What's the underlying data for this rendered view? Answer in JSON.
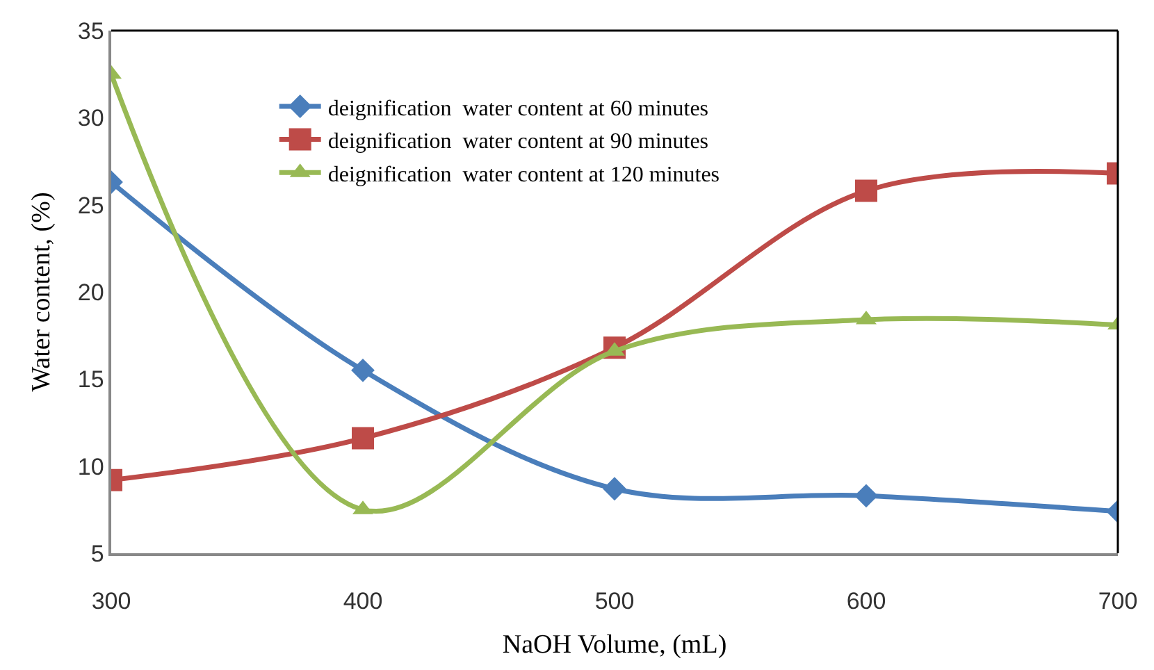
{
  "chart_data": {
    "type": "line",
    "xlabel": "NaOH Volume, (mL)",
    "ylabel": "Water content, (%)",
    "x": [
      300,
      400,
      500,
      600,
      700
    ],
    "series": [
      {
        "name": "deignification  water content at 60 minutes",
        "color": "#4a7ebb",
        "marker": "diamond",
        "values": [
          26.3,
          15.5,
          8.7,
          8.3,
          7.4
        ]
      },
      {
        "name": "deignification  water content at 90 minutes",
        "color": "#be4b48",
        "marker": "square",
        "values": [
          9.2,
          11.6,
          16.8,
          25.8,
          26.8
        ]
      },
      {
        "name": "deignification  water content at 120 minutes",
        "color": "#98b954",
        "marker": "triangle",
        "values": [
          32.5,
          7.5,
          16.6,
          18.4,
          18.1
        ]
      }
    ],
    "xlim": [
      300,
      700
    ],
    "xticks": [
      300,
      400,
      500,
      600,
      700
    ],
    "ylim": [
      5,
      35
    ],
    "yticks": [
      5,
      10,
      15,
      20,
      25,
      30,
      35
    ],
    "grid": false,
    "legend": "top left",
    "line_style": "solid"
  }
}
